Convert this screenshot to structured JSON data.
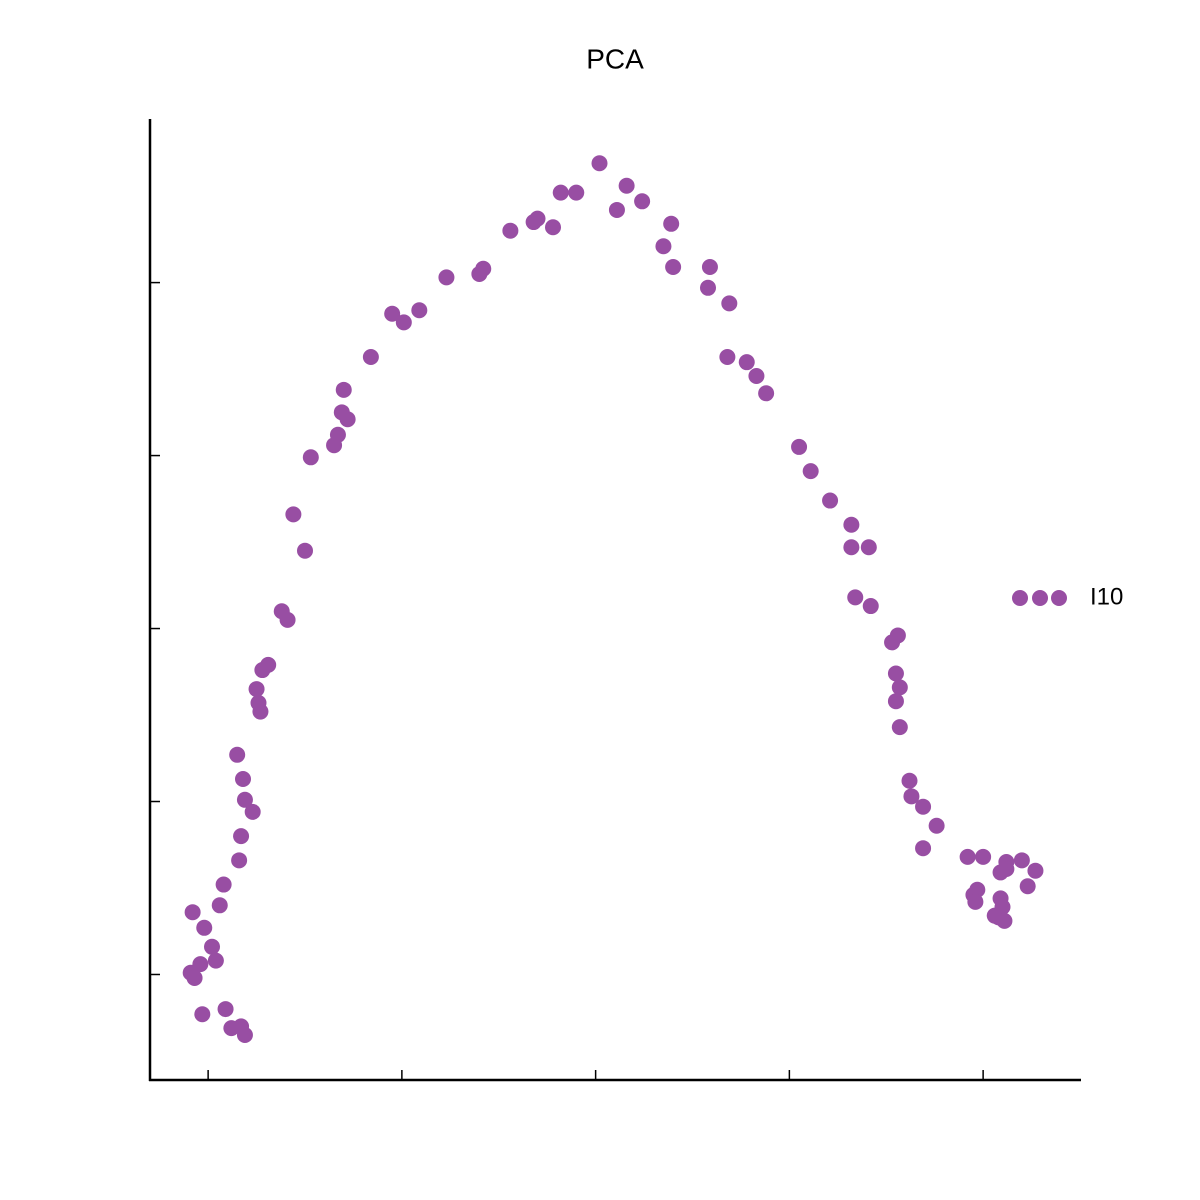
{
  "chart_data": {
    "type": "scatter",
    "title": "PCA",
    "series": [
      {
        "name": "I10",
        "color": "#984ea3",
        "x": [
          -0.08,
          -0.02,
          0.02,
          -0.04,
          0.04,
          -0.09,
          -0.07,
          -0.03,
          0.09,
          0.12,
          0.17,
          0.19,
          0.06,
          0.08,
          0.16,
          0.17,
          0.23,
          0.19,
          0.18,
          0.15,
          0.27,
          0.26,
          0.25,
          0.28,
          0.31,
          0.38,
          0.41,
          0.5,
          0.44,
          0.53,
          0.65,
          0.67,
          0.69,
          0.72,
          0.7,
          0.84,
          0.95,
          1.01,
          1.09,
          1.23,
          1.4,
          1.42,
          1.56,
          1.68,
          1.7,
          1.78,
          1.82,
          1.9,
          2.02,
          2.16,
          2.11,
          2.24,
          2.39,
          2.35,
          2.4,
          2.59,
          2.58,
          2.69,
          2.68,
          2.78,
          2.83,
          2.88,
          3.05,
          3.11,
          3.21,
          3.32,
          3.32,
          3.41,
          3.34,
          3.42,
          3.53,
          3.56,
          3.55,
          3.57,
          3.55,
          3.57,
          3.62,
          3.63,
          3.69,
          3.76,
          3.69,
          3.92,
          4.0,
          4.12,
          4.2,
          4.27,
          4.09,
          4.12,
          4.23,
          3.95,
          3.97,
          3.96,
          4.09,
          4.1,
          4.06,
          4.08,
          4.11
        ],
        "y": [
          0.36,
          0.27,
          0.16,
          0.06,
          0.08,
          0.01,
          -0.02,
          -0.23,
          -0.2,
          -0.31,
          -0.3,
          -0.35,
          0.4,
          0.52,
          0.66,
          0.8,
          0.94,
          1.01,
          1.13,
          1.27,
          1.52,
          1.57,
          1.65,
          1.76,
          1.79,
          2.1,
          2.05,
          2.45,
          2.66,
          2.99,
          3.06,
          3.12,
          3.25,
          3.21,
          3.38,
          3.57,
          3.82,
          3.77,
          3.84,
          4.03,
          4.05,
          4.08,
          4.3,
          4.35,
          4.37,
          4.32,
          4.52,
          4.52,
          4.69,
          4.56,
          4.42,
          4.47,
          4.34,
          4.21,
          4.09,
          4.09,
          3.97,
          3.88,
          3.57,
          3.54,
          3.46,
          3.36,
          3.05,
          2.91,
          2.74,
          2.6,
          2.47,
          2.47,
          2.18,
          2.13,
          1.92,
          1.96,
          1.74,
          1.66,
          1.58,
          1.43,
          1.12,
          1.03,
          0.97,
          0.86,
          0.73,
          0.68,
          0.68,
          0.65,
          0.66,
          0.6,
          0.59,
          0.61,
          0.51,
          0.46,
          0.49,
          0.42,
          0.44,
          0.39,
          0.34,
          0.33,
          0.31
        ]
      }
    ],
    "xlim": [
      -0.3,
      4.5
    ],
    "ylim": [
      -0.61,
      4.94
    ],
    "xticks": [
      0,
      1,
      2,
      3,
      4
    ],
    "yticks": [
      0,
      1,
      2,
      3,
      4
    ]
  }
}
